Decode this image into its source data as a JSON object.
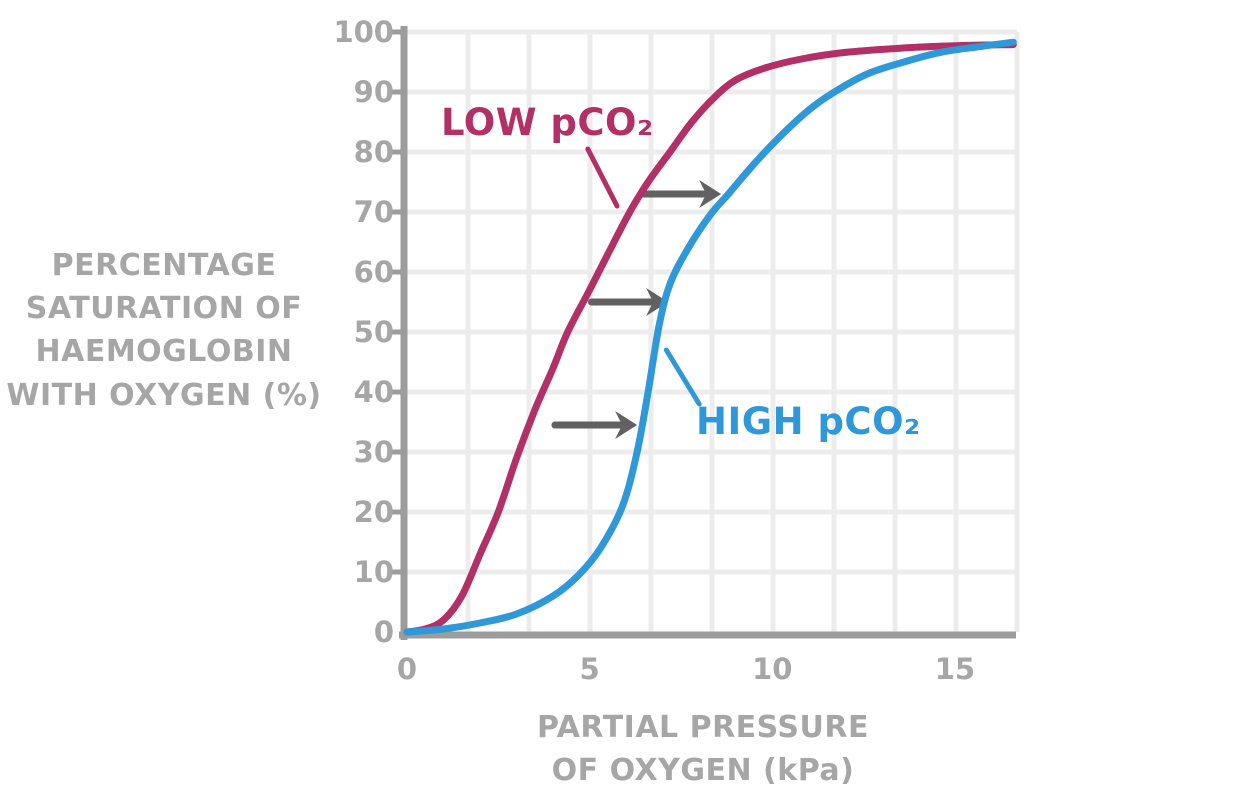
{
  "style": {
    "background": "#ffffff",
    "axis_color": "#9c9c9c",
    "grid_color": "#ececec",
    "tick_text_color": "#a6a6a6",
    "arrow_color": "#616161"
  },
  "labels": {
    "y_axis_title_display": "PERCENTAGE\nSATURATION OF\nHAEMOGLOBIN\nWITH OXYGEN (%)",
    "x_axis_title_display": "PARTIAL PRESSURE\nOF OXYGEN (kPa)"
  },
  "chart_data": {
    "type": "line",
    "title": "",
    "xlabel": "PARTIAL PRESSURE OF OXYGEN (kPa)",
    "ylabel": "PERCENTAGE SATURATION OF HAEMOGLOBIN WITH OXYGEN (%)",
    "xlim": [
      0,
      16.7
    ],
    "ylim": [
      0,
      100
    ],
    "x_ticks": [
      0,
      5,
      10,
      15
    ],
    "y_ticks": [
      0,
      10,
      20,
      30,
      40,
      50,
      60,
      70,
      80,
      90,
      100
    ],
    "grid": true,
    "x_gridline_count": 10,
    "y_gridline_count": 10,
    "legend_position": "labels-on-curves",
    "series": [
      {
        "name": "LOW pCO₂",
        "color": "#b23066",
        "points": [
          [
            0,
            0
          ],
          [
            0.5,
            0.5
          ],
          [
            1,
            2
          ],
          [
            1.5,
            6
          ],
          [
            2,
            13
          ],
          [
            2.5,
            20
          ],
          [
            3,
            29
          ],
          [
            3.5,
            37
          ],
          [
            4,
            44
          ],
          [
            4.4,
            50
          ],
          [
            5,
            57
          ],
          [
            5.5,
            63
          ],
          [
            6.1,
            70
          ],
          [
            6.6,
            75
          ],
          [
            7.2,
            80
          ],
          [
            7.8,
            85
          ],
          [
            8.4,
            89
          ],
          [
            9,
            92
          ],
          [
            9.8,
            94
          ],
          [
            10.8,
            95.5
          ],
          [
            12,
            96.6
          ],
          [
            13.5,
            97.3
          ],
          [
            15,
            97.7
          ],
          [
            16.6,
            97.9
          ]
        ],
        "label_leader_kpa_pct": {
          "from": [
            4.95,
            80.5
          ],
          "to": [
            5.75,
            71
          ]
        }
      },
      {
        "name": "HIGH pCO₂",
        "color": "#2f98d8",
        "points": [
          [
            0,
            0
          ],
          [
            1,
            0.5
          ],
          [
            2,
            1.5
          ],
          [
            3,
            3
          ],
          [
            4,
            6
          ],
          [
            4.7,
            9.5
          ],
          [
            5.3,
            14
          ],
          [
            5.9,
            21
          ],
          [
            6.3,
            30
          ],
          [
            6.6,
            40
          ],
          [
            6.9,
            51
          ],
          [
            7.2,
            58
          ],
          [
            7.7,
            64
          ],
          [
            8.3,
            69.5
          ],
          [
            8.8,
            73
          ],
          [
            9.5,
            78
          ],
          [
            10.2,
            82.5
          ],
          [
            11,
            87
          ],
          [
            11.7,
            90
          ],
          [
            12.6,
            93
          ],
          [
            13.6,
            95
          ],
          [
            14.6,
            96.6
          ],
          [
            15.6,
            97.5
          ],
          [
            16.6,
            98.3
          ]
        ],
        "label_leader_kpa_pct": {
          "from": [
            7.1,
            47
          ],
          "to": [
            8.0,
            38
          ]
        }
      }
    ],
    "shift_arrows_kpa_pct": [
      {
        "y_pct": 73,
        "from_kpa": 6.4,
        "to_kpa": 8.6
      },
      {
        "y_pct": 55,
        "from_kpa": 5.05,
        "to_kpa": 7.15
      },
      {
        "y_pct": 34.5,
        "from_kpa": 4.05,
        "to_kpa": 6.3
      }
    ]
  }
}
